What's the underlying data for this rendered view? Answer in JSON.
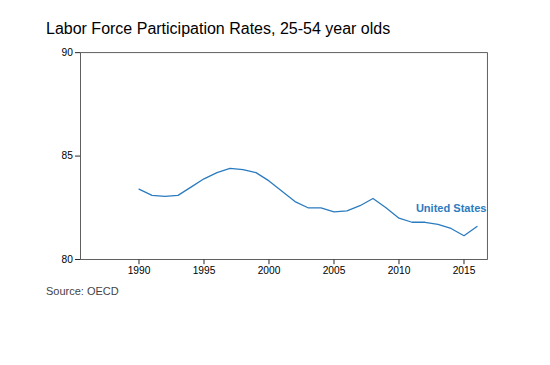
{
  "chart_data": {
    "type": "line",
    "title": "Labor Force Participation Rates, 25-54 year olds",
    "source": "Source: OECD",
    "x": [
      1990,
      1991,
      1992,
      1993,
      1994,
      1995,
      1996,
      1997,
      1998,
      1999,
      2000,
      2001,
      2002,
      2003,
      2004,
      2005,
      2006,
      2007,
      2008,
      2009,
      2010,
      2011,
      2012,
      2013,
      2014,
      2015,
      2016
    ],
    "values": [
      83.4,
      83.1,
      83.05,
      83.1,
      83.5,
      83.9,
      84.2,
      84.4,
      84.35,
      84.2,
      83.8,
      83.3,
      82.8,
      82.5,
      82.5,
      82.3,
      82.35,
      82.6,
      82.95,
      82.5,
      82.0,
      81.8,
      81.8,
      81.7,
      81.5,
      81.15,
      81.6
    ],
    "color": "#2b7bbf",
    "xlim": [
      1985.5,
      2016.8
    ],
    "xticks": [
      1990,
      1995,
      2000,
      2005,
      2010,
      2015
    ],
    "ylim": [
      80,
      90
    ],
    "yticks": [
      80,
      85,
      90
    ],
    "grid": false,
    "annotations": [
      {
        "text": "United States",
        "x": 2011.3,
        "y": 82.45,
        "color": "#2b7bbf"
      }
    ]
  }
}
